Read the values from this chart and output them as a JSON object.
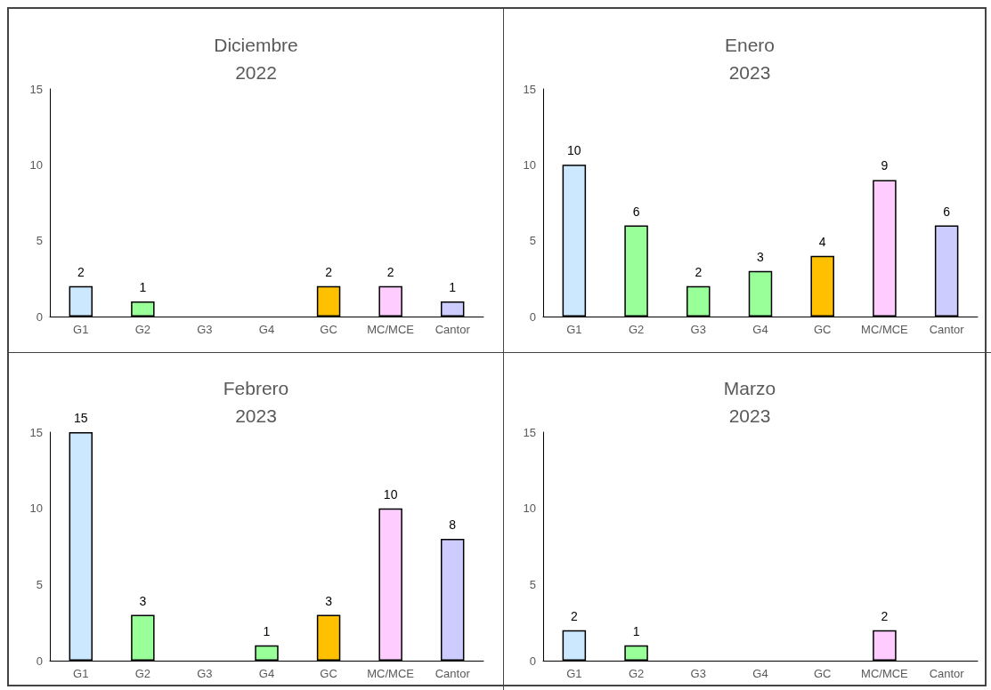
{
  "chart_data": [
    {
      "type": "bar",
      "title": "Diciembre 2022",
      "categories": [
        "G1",
        "G2",
        "G3",
        "G4",
        "GC",
        "MC/MCE",
        "Cantor"
      ],
      "values": [
        2,
        1,
        null,
        null,
        2,
        2,
        1
      ],
      "colors": [
        "#cce8ff",
        "#99ff99",
        "#99ff99",
        "#99ff99",
        "#ffc000",
        "#ffccff",
        "#ccccff"
      ],
      "ylim": [
        0,
        15
      ],
      "yticks": [
        0,
        5,
        10,
        15
      ],
      "grid": false,
      "data_labels": true
    },
    {
      "type": "bar",
      "title": "Enero 2023",
      "categories": [
        "G1",
        "G2",
        "G3",
        "G4",
        "GC",
        "MC/MCE",
        "Cantor"
      ],
      "values": [
        10,
        6,
        2,
        3,
        4,
        9,
        6
      ],
      "colors": [
        "#cce8ff",
        "#99ff99",
        "#99ff99",
        "#99ff99",
        "#ffc000",
        "#ffccff",
        "#ccccff"
      ],
      "ylim": [
        0,
        15
      ],
      "yticks": [
        0,
        5,
        10,
        15
      ],
      "grid": false,
      "data_labels": true
    },
    {
      "type": "bar",
      "title": "Febrero 2023",
      "categories": [
        "G1",
        "G2",
        "G3",
        "G4",
        "GC",
        "MC/MCE",
        "Cantor"
      ],
      "values": [
        15,
        3,
        null,
        1,
        3,
        10,
        8
      ],
      "colors": [
        "#cce8ff",
        "#99ff99",
        "#99ff99",
        "#99ff99",
        "#ffc000",
        "#ffccff",
        "#ccccff"
      ],
      "ylim": [
        0,
        15
      ],
      "yticks": [
        0,
        5,
        10,
        15
      ],
      "grid": false,
      "data_labels": true
    },
    {
      "type": "bar",
      "title": "Marzo 2023",
      "categories": [
        "G1",
        "G2",
        "G3",
        "G4",
        "GC",
        "MC/MCE",
        "Cantor"
      ],
      "values": [
        2,
        1,
        null,
        null,
        null,
        2,
        null
      ],
      "colors": [
        "#cce8ff",
        "#99ff99",
        "#99ff99",
        "#99ff99",
        "#ffc000",
        "#ffccff",
        "#ccccff"
      ],
      "ylim": [
        0,
        15
      ],
      "yticks": [
        0,
        5,
        10,
        15
      ],
      "grid": false,
      "data_labels": true
    }
  ]
}
